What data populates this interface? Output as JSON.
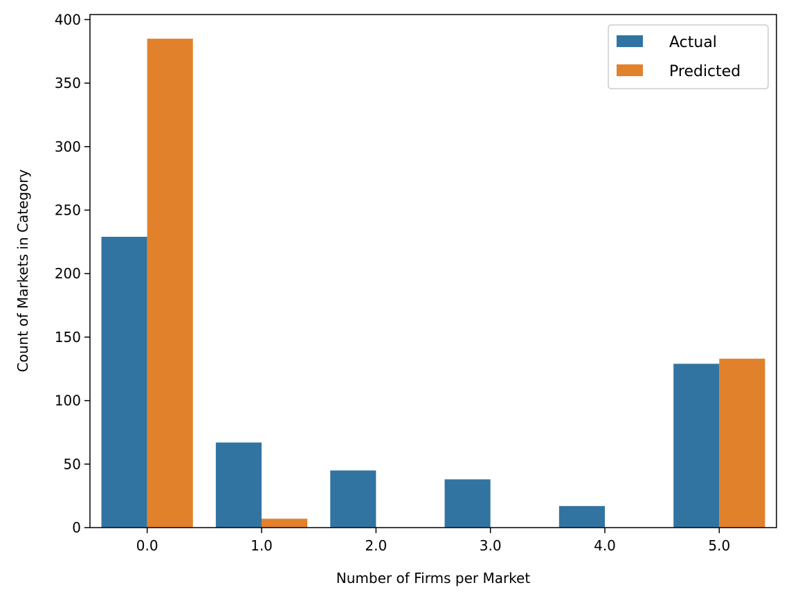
{
  "chart_data": {
    "type": "bar",
    "title": "",
    "xlabel": "Number of Firms per Market",
    "ylabel": "Count of Markets in Category",
    "categories": [
      "0.0",
      "1.0",
      "2.0",
      "3.0",
      "4.0",
      "5.0"
    ],
    "series": [
      {
        "name": "Actual",
        "color": "#3274a1",
        "values": [
          229,
          67,
          45,
          38,
          17,
          129
        ]
      },
      {
        "name": "Predicted",
        "color": "#e1812c",
        "values": [
          385,
          7,
          0,
          0,
          0,
          133
        ]
      }
    ],
    "ylim": [
      0,
      404
    ],
    "yticks": [
      0,
      50,
      100,
      150,
      200,
      250,
      300,
      350,
      400
    ],
    "ytick_labels": [
      "0",
      "50",
      "100",
      "150",
      "200",
      "250",
      "300",
      "350",
      "400"
    ],
    "grid": false,
    "legend_position": "top-right"
  }
}
